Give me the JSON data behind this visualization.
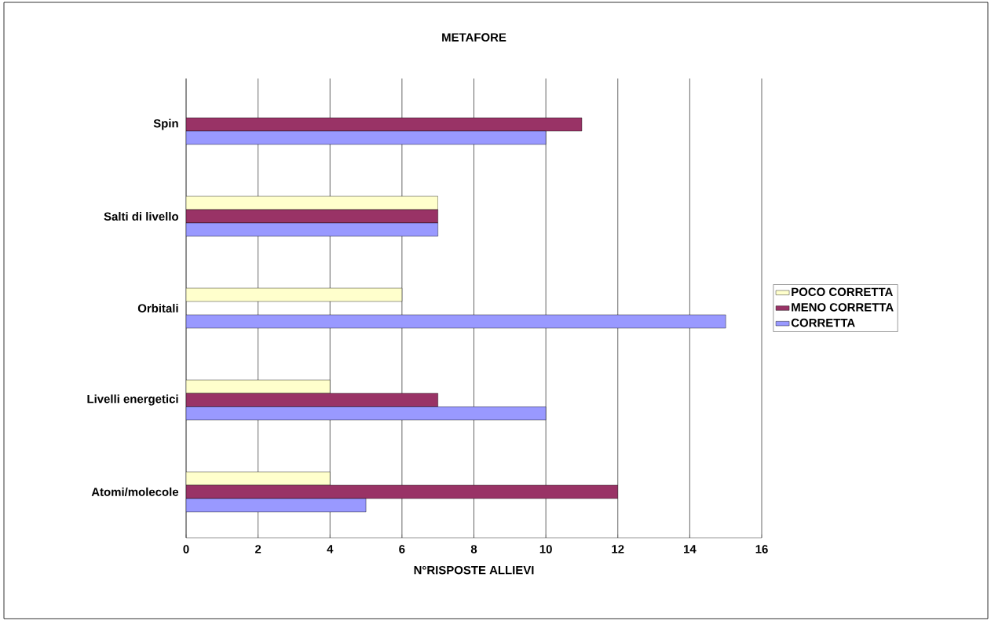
{
  "chart_data": {
    "type": "bar",
    "orientation": "horizontal",
    "title": "METAFORE",
    "xlabel": "N°RISPOSTE ALLIEVI",
    "categories": [
      "Spin",
      "Salti di livello",
      "Orbitali",
      "Livelli energetici",
      "Atomi/molecole"
    ],
    "series": [
      {
        "name": "POCO CORRETTA",
        "color": "#ffffcc",
        "values": [
          null,
          7,
          6,
          4,
          4
        ]
      },
      {
        "name": "MENO CORRETTA",
        "color": "#993366",
        "values": [
          11,
          7,
          null,
          7,
          12
        ]
      },
      {
        "name": "CORRETTA",
        "color": "#9999ff",
        "values": [
          10,
          7,
          15,
          10,
          5
        ]
      }
    ],
    "xlim": [
      0,
      16
    ],
    "xticks": [
      0,
      2,
      4,
      6,
      8,
      10,
      12,
      14,
      16
    ],
    "grid": "x",
    "legend": "right"
  }
}
